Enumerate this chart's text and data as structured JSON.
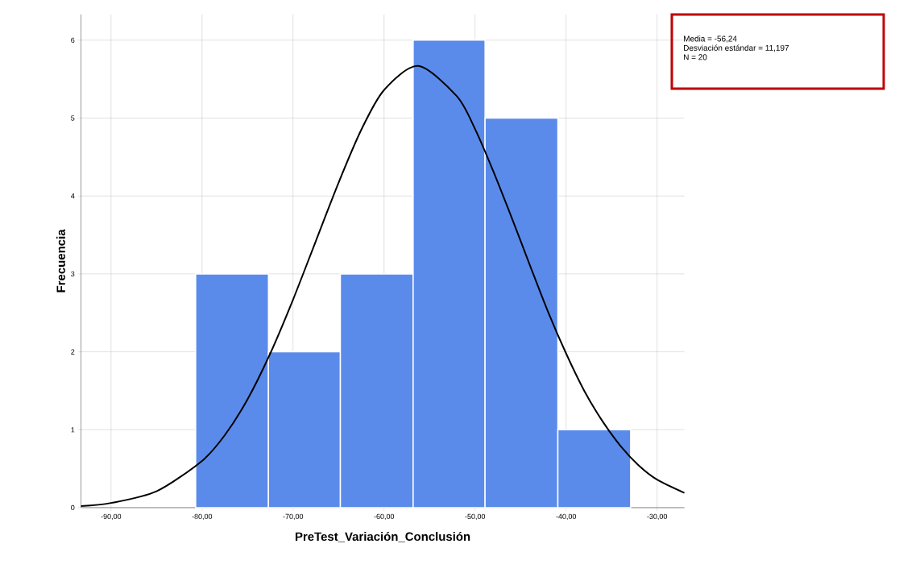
{
  "chart_data": {
    "type": "histogram",
    "xlabel": "PreTest_Variación_Conclusión",
    "ylabel": "Frecuencia",
    "bins": [
      -80.7,
      -72.7,
      -64.8,
      -56.8,
      -48.9,
      -40.9,
      -32.9
    ],
    "values": [
      3,
      2,
      3,
      6,
      5,
      1
    ],
    "color": "#5b8bea",
    "series": [
      {
        "type": "line",
        "color": "#000000",
        "x": [
          -93.3,
          -90,
          -85,
          -80,
          -77.5,
          -75,
          -72.5,
          -70,
          -67.5,
          -65,
          -62.5,
          -60,
          -56.24,
          -52,
          -50,
          -48,
          -46,
          -44,
          -42,
          -40,
          -38,
          -36,
          -34,
          -32,
          -30,
          -27
        ],
        "values": [
          0.02,
          0.06,
          0.21,
          0.6,
          0.93,
          1.39,
          1.98,
          2.67,
          3.42,
          4.17,
          4.85,
          5.36,
          5.67,
          5.28,
          4.86,
          4.32,
          3.73,
          3.12,
          2.52,
          1.98,
          1.5,
          1.11,
          0.79,
          0.54,
          0.36,
          0.19
        ]
      }
    ],
    "xlim": [
      -93.3,
      -27
    ],
    "ylim": [
      0,
      6.33
    ],
    "xticks": [
      {
        "value": -90,
        "label": "-90,00"
      },
      {
        "value": -80,
        "label": "-80,00"
      },
      {
        "value": -70,
        "label": "-70,00"
      },
      {
        "value": -60,
        "label": "-60,00"
      },
      {
        "value": -50,
        "label": "-50,00"
      },
      {
        "value": -40,
        "label": "-40,00"
      },
      {
        "value": -30,
        "label": "-30,00"
      }
    ],
    "yticks": [
      0,
      1,
      2,
      3,
      4,
      5,
      6
    ],
    "grid": true,
    "annotations": [
      "Media = -56,24",
      "Desviación estándar = 11,197",
      "N = 20"
    ]
  }
}
